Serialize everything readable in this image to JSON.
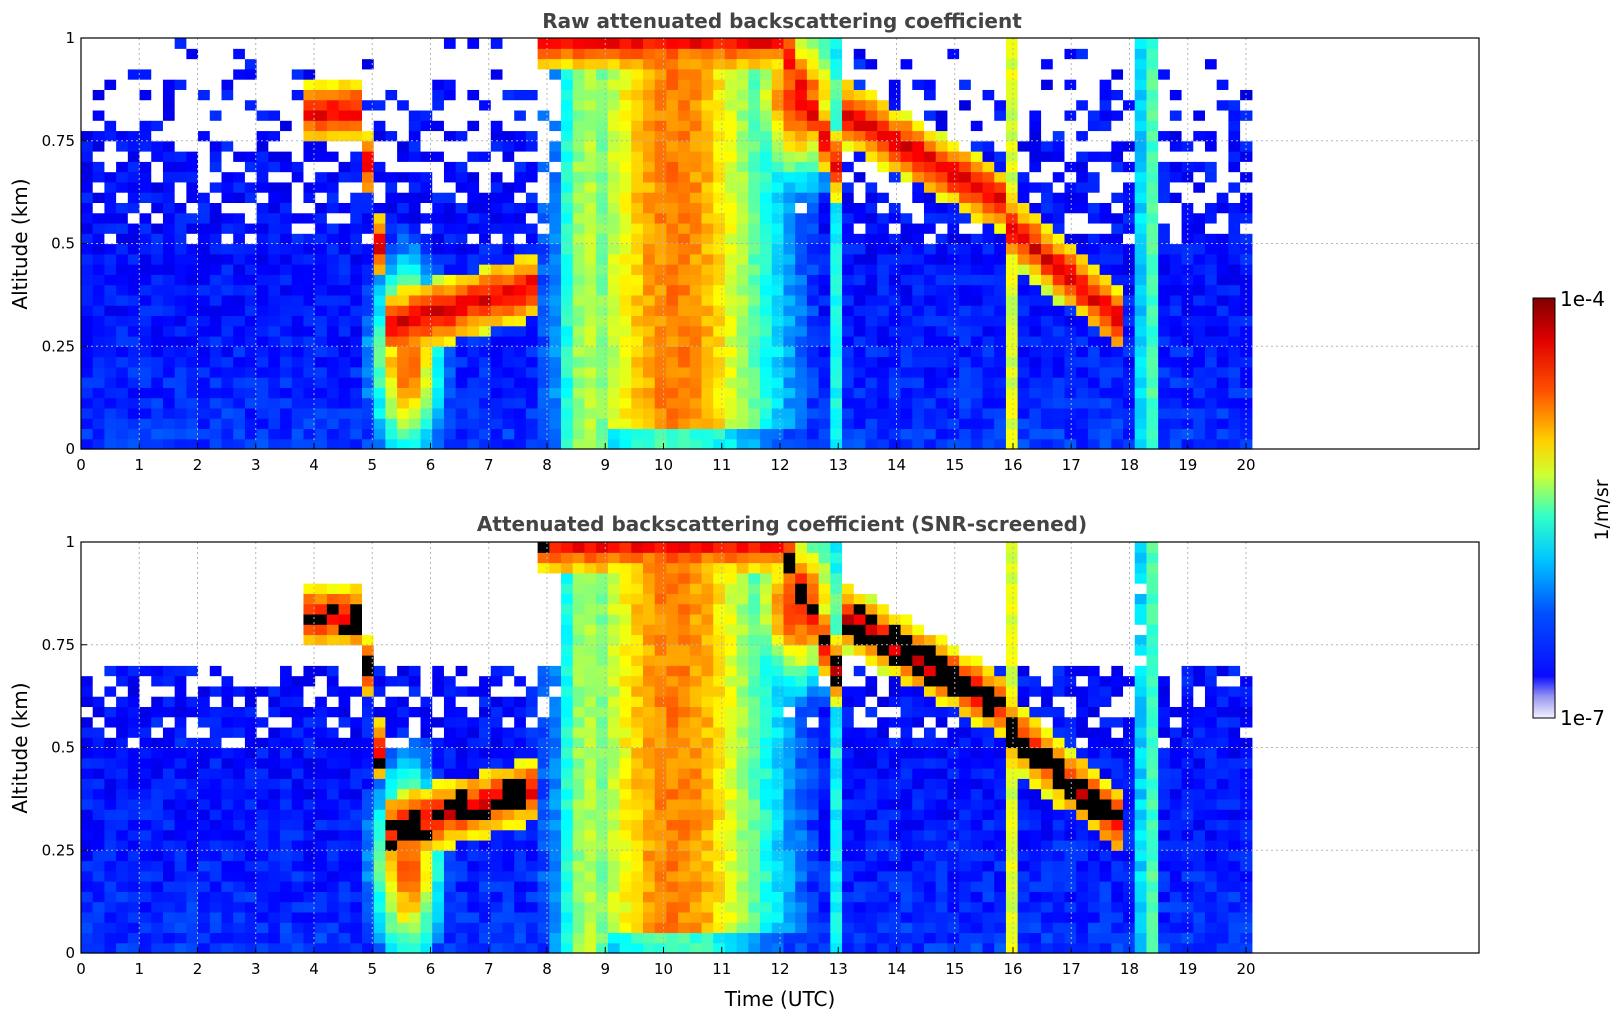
{
  "chart_data": [
    {
      "type": "heatmap",
      "title": "Raw attenuated backscattering coefficient",
      "ylabel": "Altitude (km)",
      "xlabel": "",
      "xlim": [
        0,
        24
      ],
      "ylim": [
        0,
        1
      ],
      "data_x_range": [
        0,
        20.1
      ],
      "xticks": [
        "0",
        "1",
        "2",
        "3",
        "4",
        "5",
        "6",
        "7",
        "8",
        "9",
        "10",
        "11",
        "12",
        "13",
        "14",
        "15",
        "16",
        "17",
        "18",
        "19",
        "20"
      ],
      "yticks": [
        "0",
        "0.25",
        "0.5",
        "0.75",
        "1"
      ],
      "grid": true,
      "screened": false
    },
    {
      "type": "heatmap",
      "title": "Attenuated backscattering coefficient (SNR-screened)",
      "ylabel": "Altitude (km)",
      "xlabel": "Time (UTC)",
      "xlim": [
        0,
        24
      ],
      "ylim": [
        0,
        1
      ],
      "data_x_range": [
        0,
        20.1
      ],
      "xticks": [
        "0",
        "1",
        "2",
        "3",
        "4",
        "5",
        "6",
        "7",
        "8",
        "9",
        "10",
        "11",
        "12",
        "13",
        "14",
        "15",
        "16",
        "17",
        "18",
        "19",
        "20"
      ],
      "yticks": [
        "0",
        "0.25",
        "0.5",
        "0.75",
        "1"
      ],
      "grid": true,
      "screened": true
    }
  ],
  "colorbar": {
    "label": "1/m/sr",
    "max_label": "1e-4",
    "min_label": "1e-7",
    "scale": "log",
    "colormap": "jet",
    "colors": [
      "#ffffff",
      "#0000ff",
      "#00ffff",
      "#ffff00",
      "#ff0000",
      "#800000"
    ]
  },
  "colors": {
    "title": "#444444",
    "grid": "#b5b5b5",
    "axes": "#000000"
  }
}
